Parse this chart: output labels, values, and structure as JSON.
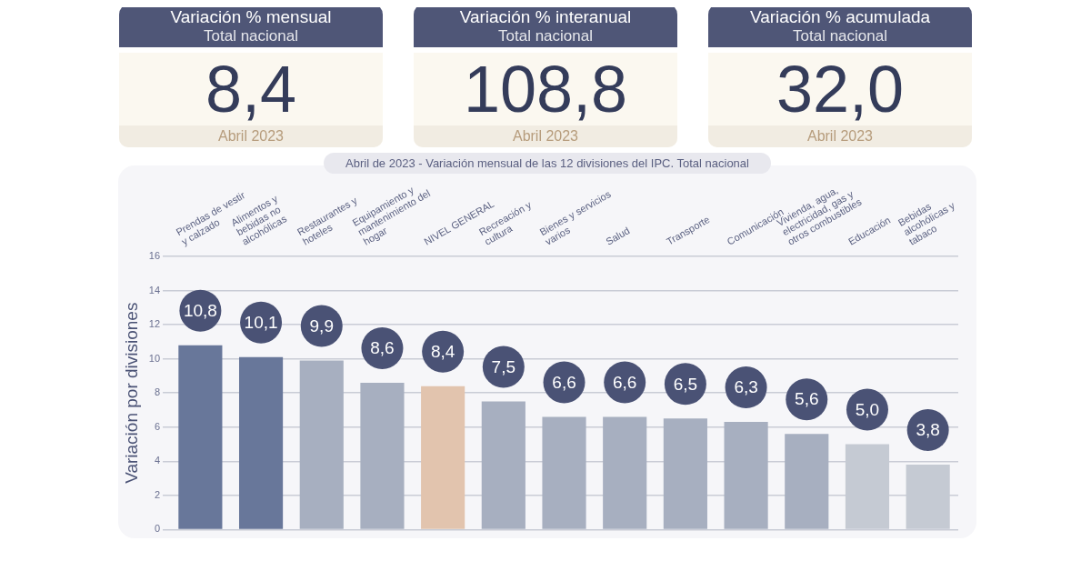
{
  "chart_data": [
    {
      "type": "other",
      "title": "Variación % mensual",
      "subtitle": "Total nacional",
      "annotations": [
        "8,4",
        "Abril 2023"
      ]
    },
    {
      "type": "other",
      "title": "Variación % interanual",
      "subtitle": "Total nacional",
      "annotations": [
        "108,8",
        "Abril 2023"
      ]
    },
    {
      "type": "other",
      "title": "Variación % acumulada",
      "subtitle": "Total nacional",
      "annotations": [
        "32,0",
        "Abril 2023"
      ]
    },
    {
      "type": "bar",
      "title": "Abril de 2023 - Variación mensual de las 12 divisiones del IPC. Total nacional",
      "ylabel": "Variación por divisiones",
      "categories": [
        "Prendas de vestir y calzado",
        "Alimentos y bebidas no alcohólicas",
        "Restaurantes y hoteles",
        "Equipamiento y mantenimiento del hogar",
        "NIVEL GENERAL",
        "Recreación y cultura",
        "Bienes y servicios varios",
        "Salud",
        "Transporte",
        "Comunicación",
        "Vivienda, agua, electricidad, gas y otros combustibles",
        "Educación",
        "Bebidas alcohólicas y tabaco"
      ],
      "values": [
        10.8,
        10.1,
        9.9,
        8.6,
        8.4,
        7.5,
        6.6,
        6.6,
        6.5,
        6.3,
        5.6,
        5.0,
        3.8
      ],
      "value_labels": [
        "10,8",
        "10,1",
        "9,9",
        "8,6",
        "8,4",
        "7,5",
        "6,6",
        "6,6",
        "6,5",
        "6,3",
        "5,6",
        "5,0",
        "3,8"
      ],
      "colors": [
        "#68779a",
        "#68779a",
        "#a7afc0",
        "#a7afc0",
        "#e2c4ae",
        "#a7afc0",
        "#a7afc0",
        "#a7afc0",
        "#a7afc0",
        "#a7afc0",
        "#a7afc0",
        "#c5cad3",
        "#c5cad3"
      ],
      "ylim": [
        0,
        16
      ],
      "yticks": [
        0,
        2,
        4,
        6,
        8,
        10,
        12,
        14,
        16
      ],
      "grid": "y",
      "legend": false
    }
  ]
}
